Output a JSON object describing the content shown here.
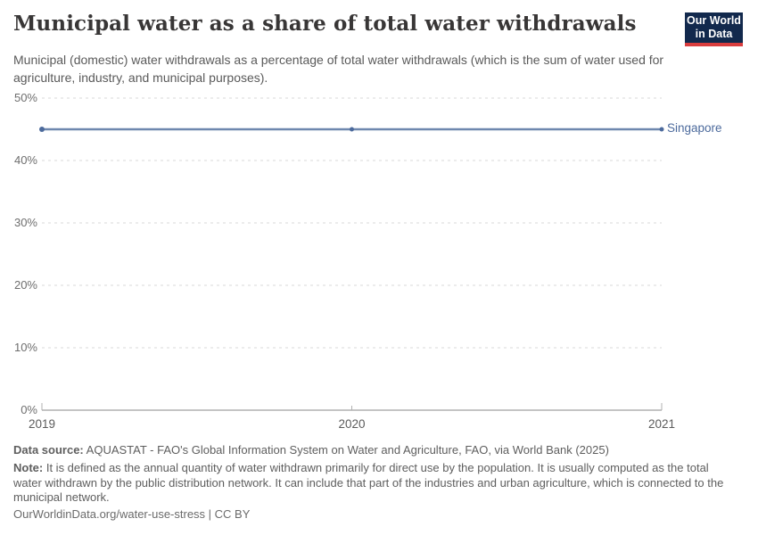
{
  "header": {
    "title": "Municipal water as a share of total water withdrawals",
    "subtitle": "Municipal (domestic) water withdrawals as a percentage of total water withdrawals (which is the sum of water used for agriculture, industry, and municipal purposes).",
    "logo": {
      "line1": "Our World",
      "line2": "in Data",
      "bg_color": "#12294d",
      "accent_color": "#d93d3e"
    }
  },
  "chart_data": {
    "type": "line",
    "title": "Municipal water as a share of total water withdrawals",
    "x": [
      2019,
      2020,
      2021
    ],
    "series": [
      {
        "name": "Singapore",
        "values": [
          45,
          45,
          45
        ],
        "color": "#6e87ae",
        "marker_color": "#4c6a9c",
        "label_color": "#4c6a9c"
      }
    ],
    "xlabel": "",
    "ylabel": "",
    "ylim": [
      0,
      50
    ],
    "yticks": [
      0,
      10,
      20,
      30,
      40,
      50
    ],
    "ytick_suffix": "%",
    "xticks": [
      2019,
      2020,
      2021
    ],
    "grid": "horizontal-dashed",
    "legend": "line-end-label"
  },
  "footer": {
    "data_source_label": "Data source:",
    "data_source_text": "AQUASTAT - FAO's Global Information System on Water and Agriculture, FAO, via World Bank (2025)",
    "note_label": "Note:",
    "note_text": "It is defined as the annual quantity of water withdrawn primarily for direct use by the population. It is usually computed as the total water withdrawn by the public distribution network. It can include that part of the industries and urban agriculture, which is connected to the municipal network.",
    "citation": "OurWorldinData.org/water-use-stress | CC BY"
  }
}
